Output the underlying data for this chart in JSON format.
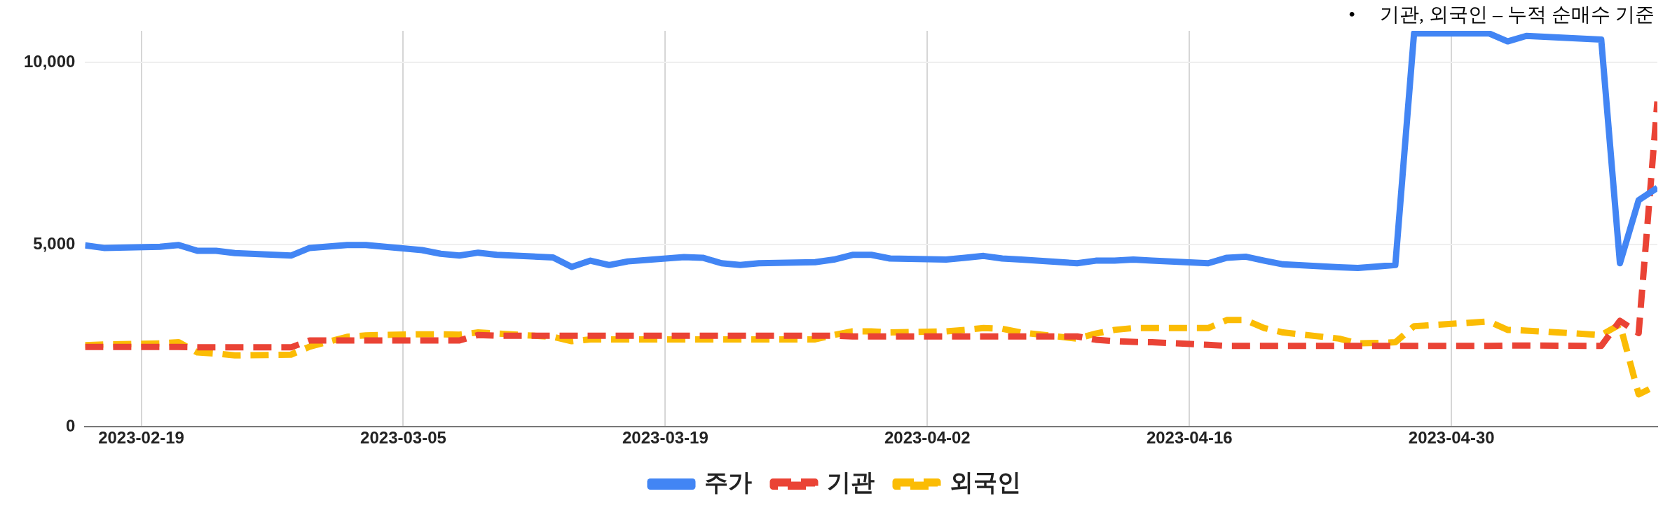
{
  "chart_data": {
    "type": "line",
    "annotations": [
      "•     기관, 외국인 – 누적 순매수 기준"
    ],
    "x": [
      "2023-02-16",
      "2023-02-17",
      "2023-02-20",
      "2023-02-21",
      "2023-02-22",
      "2023-02-23",
      "2023-02-24",
      "2023-02-27",
      "2023-02-28",
      "2023-03-02",
      "2023-03-03",
      "2023-03-06",
      "2023-03-07",
      "2023-03-08",
      "2023-03-09",
      "2023-03-10",
      "2023-03-13",
      "2023-03-14",
      "2023-03-15",
      "2023-03-16",
      "2023-03-17",
      "2023-03-20",
      "2023-03-21",
      "2023-03-22",
      "2023-03-23",
      "2023-03-24",
      "2023-03-27",
      "2023-03-28",
      "2023-03-29",
      "2023-03-30",
      "2023-03-31",
      "2023-04-03",
      "2023-04-04",
      "2023-04-05",
      "2023-04-06",
      "2023-04-07",
      "2023-04-10",
      "2023-04-11",
      "2023-04-12",
      "2023-04-13",
      "2023-04-14",
      "2023-04-17",
      "2023-04-18",
      "2023-04-19",
      "2023-04-20",
      "2023-04-21",
      "2023-04-24",
      "2023-04-25",
      "2023-04-26",
      "2023-04-27",
      "2023-04-28",
      "2023-05-02",
      "2023-05-03",
      "2023-05-04",
      "2023-05-08",
      "2023-05-09",
      "2023-05-10",
      "2023-05-11"
    ],
    "series": [
      {
        "name": "주가",
        "color": "#4285f4",
        "line_style": "solid",
        "values": [
          4980,
          4910,
          4940,
          4990,
          4830,
          4830,
          4770,
          4700,
          4910,
          4990,
          4990,
          4850,
          4750,
          4700,
          4780,
          4720,
          4650,
          4390,
          4560,
          4440,
          4540,
          4660,
          4640,
          4490,
          4440,
          4490,
          4520,
          4590,
          4720,
          4720,
          4620,
          4590,
          4640,
          4690,
          4620,
          4590,
          4490,
          4560,
          4560,
          4590,
          4560,
          4490,
          4640,
          4670,
          4560,
          4460,
          4380,
          4360,
          4400,
          4440,
          10800,
          10800,
          10580,
          10730,
          10630,
          4490,
          6220,
          6560
        ]
      },
      {
        "name": "기관",
        "color": "#ea4335",
        "line_style": "dashed",
        "values": [
          2190,
          2190,
          2190,
          2190,
          2180,
          2180,
          2180,
          2180,
          2370,
          2370,
          2370,
          2370,
          2370,
          2370,
          2520,
          2500,
          2500,
          2500,
          2500,
          2500,
          2500,
          2500,
          2500,
          2500,
          2500,
          2500,
          2500,
          2500,
          2480,
          2480,
          2480,
          2480,
          2480,
          2480,
          2480,
          2480,
          2480,
          2390,
          2350,
          2330,
          2320,
          2250,
          2220,
          2220,
          2220,
          2220,
          2220,
          2220,
          2220,
          2220,
          2220,
          2220,
          2230,
          2230,
          2220,
          2910,
          2570,
          8930
        ]
      },
      {
        "name": "외국인",
        "color": "#fbbc04",
        "line_style": "dashed",
        "values": [
          2240,
          2260,
          2290,
          2320,
          2040,
          2010,
          1960,
          1980,
          2200,
          2470,
          2510,
          2540,
          2540,
          2530,
          2590,
          2560,
          2470,
          2350,
          2400,
          2400,
          2400,
          2400,
          2400,
          2400,
          2400,
          2400,
          2400,
          2520,
          2620,
          2620,
          2590,
          2620,
          2660,
          2710,
          2690,
          2590,
          2420,
          2560,
          2660,
          2710,
          2710,
          2710,
          2930,
          2930,
          2710,
          2590,
          2420,
          2290,
          2300,
          2320,
          2760,
          2890,
          2660,
          2640,
          2520,
          2810,
          890,
          1140
        ]
      }
    ],
    "xlim": [
      "2023-02-16",
      "2023-05-11"
    ],
    "xticks": [
      "2023-02-19",
      "2023-03-05",
      "2023-03-19",
      "2023-04-02",
      "2023-04-16",
      "2023-04-30"
    ],
    "ylim": [
      0,
      10870
    ],
    "yticks": [
      {
        "value": 0,
        "label": "0"
      },
      {
        "value": 5000,
        "label": "5,000"
      },
      {
        "value": 10000,
        "label": "10,000"
      }
    ],
    "grid": true,
    "legend": "bottom",
    "marker": "none"
  }
}
